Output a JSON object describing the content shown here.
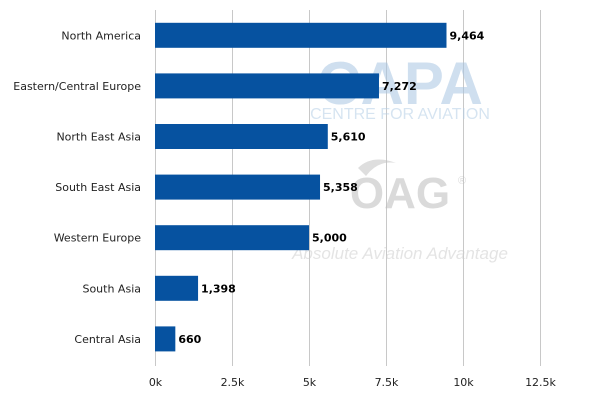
{
  "chart_data": {
    "type": "bar",
    "orientation": "horizontal",
    "categories": [
      "North America",
      "Eastern/Central Europe",
      "North East Asia",
      "South East Asia",
      "Western Europe",
      "South Asia",
      "Central Asia"
    ],
    "values": [
      9464,
      7272,
      5610,
      5358,
      5000,
      1398,
      660
    ],
    "value_labels": [
      "9,464",
      "7,272",
      "5,610",
      "5,358",
      "5,000",
      "1,398",
      "660"
    ],
    "xlim": [
      0,
      12500
    ],
    "x_ticks": [
      0,
      2500,
      5000,
      7500,
      10000,
      12500
    ],
    "x_tick_labels": [
      "0k",
      "2.5k",
      "5k",
      "7.5k",
      "10k",
      "12.5k"
    ],
    "grid": "vertical",
    "bar_color": "#0652a0",
    "grid_color": "#c8c8c8",
    "legend": "none"
  },
  "watermark": {
    "capa_logo": "CAPA",
    "capa_text": "CENTRE FOR AVIATION",
    "oag_logo": "OAG",
    "oag_registered": "®",
    "oag_tagline": "Absolute Aviation Advantage"
  }
}
